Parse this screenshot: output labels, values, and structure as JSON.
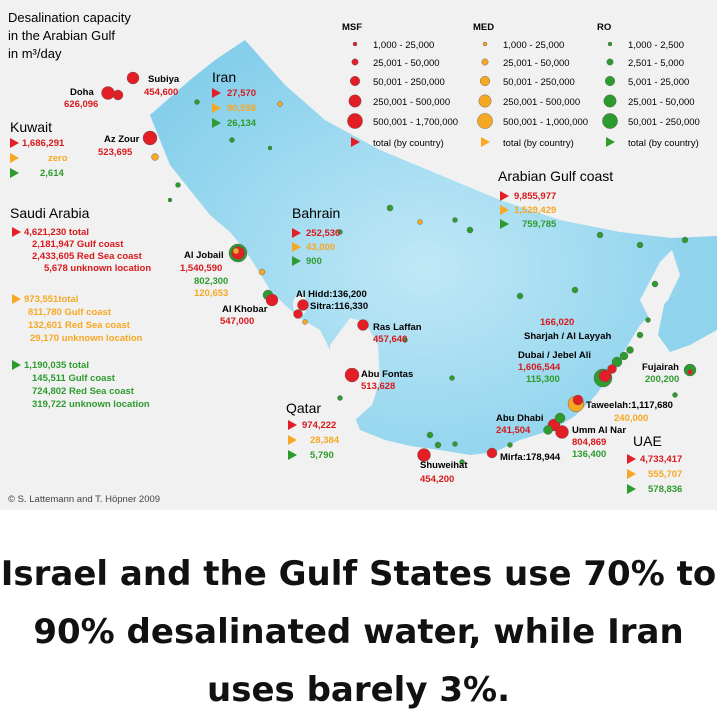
{
  "title": [
    "Desalination capacity",
    "in the Arabian Gulf",
    "in m³/day"
  ],
  "credit": "© S. Lattemann and T. Höpner 2009",
  "colors": {
    "msf": "#e41e26",
    "med": "#f7a823",
    "ro": "#2e9b2e",
    "sea": "#9fd9ef",
    "land": "#f2f2f2"
  },
  "legend": {
    "columns": [
      {
        "key": "msf",
        "title": "MSF",
        "items": [
          "1,000 - 25,000",
          "25,001 - 50,000",
          "50,001 - 250,000",
          "250,001 - 500,000",
          "500,001 - 1,700,000"
        ],
        "total": "total (by country)"
      },
      {
        "key": "med",
        "title": "MED",
        "items": [
          "1,000 - 25,000",
          "25,001 - 50,000",
          "50,001 - 250,000",
          "250,001 - 500,000",
          "500,001 - 1,000,000"
        ],
        "total": "total (by country)"
      },
      {
        "key": "ro",
        "title": "RO",
        "items": [
          "1,000 - 2,500",
          "2,501 - 5,000",
          "5,001 - 25,000",
          "25,001 - 50,000",
          "50,001 - 250,000"
        ],
        "total": "total (by country)"
      }
    ]
  },
  "countries": {
    "kuwait": {
      "name": "Kuwait",
      "msf": "1,686,291",
      "med": "zero",
      "ro": "2,614"
    },
    "iran": {
      "name": "Iran",
      "msf": "27,570",
      "med": "90,558",
      "ro": "26,134"
    },
    "saudi": {
      "name": "Saudi Arabia",
      "msf": [
        "4,621,230 total",
        "2,181,947 Gulf coast",
        "2,433,605 Red Sea coast",
        "5,678 unknown location"
      ],
      "med": [
        "973,551total",
        "811,780 Gulf coast",
        "132,601 Red Sea coast",
        "29,170 unknown location"
      ],
      "ro": [
        "1,190,035 total",
        "145,511 Gulf coast",
        "724,802 Red Sea coast",
        "319,722 unknown location"
      ]
    },
    "bahrain": {
      "name": "Bahrain",
      "msf": "252,530",
      "med": "43,000",
      "ro": "900"
    },
    "qatar": {
      "name": "Qatar",
      "msf": "974,222",
      "med": "28,384",
      "ro": "5,790"
    },
    "gulf_coast": {
      "name": "Arabian Gulf coast",
      "msf": "9,855,977",
      "med": "1,529,429",
      "ro": "759,785"
    },
    "uae": {
      "name": "UAE",
      "msf": "4,733,417",
      "med": "555,707",
      "ro": "578,836"
    }
  },
  "sites": {
    "doha": {
      "name": "Doha",
      "value": "626,096"
    },
    "subiya": {
      "name": "Subiya",
      "value": "454,600"
    },
    "az_zour": {
      "name": "Az Zour",
      "value": "523,695"
    },
    "al_jobail": {
      "name": "Al Jobail",
      "msf": "1,540,590",
      "med": "120,653",
      "ro": "802,300"
    },
    "al_khobar": {
      "name": "Al Khobar",
      "value": "547,000"
    },
    "al_hidd": {
      "label": "Al Hidd:136,200"
    },
    "sitra": {
      "label": "Sitra:116,330"
    },
    "ras_laffan": {
      "name": "Ras Laffan",
      "value": "457,640"
    },
    "abu_fontas": {
      "name": "Abu Fontas",
      "value": "513,628"
    },
    "sharjah": {
      "value": "166,020",
      "name": "Sharjah / Al Layyah"
    },
    "dubai": {
      "name": "Dubai / Jebel Ali",
      "msf": "1,606,544",
      "ro": "115,300"
    },
    "fujairah": {
      "name": "Fujairah",
      "value": "200,200"
    },
    "taweelah": {
      "label": "Taweelah:1,117,680",
      "med": "240,000"
    },
    "abu_dhabi": {
      "name": "Abu Dhabi",
      "value": "241,504"
    },
    "umm_al_nar": {
      "name": "Umm Al Nar",
      "msf": "804,869",
      "ro": "136,400"
    },
    "mirfa": {
      "label": "Mirfa:178,944"
    },
    "shuweihat": {
      "name": "Shuweihat",
      "value": "454,200"
    }
  },
  "caption": [
    "Israel and the Gulf States use 70% to",
    "90% desalinated water, while Iran",
    "uses barely 3%."
  ]
}
